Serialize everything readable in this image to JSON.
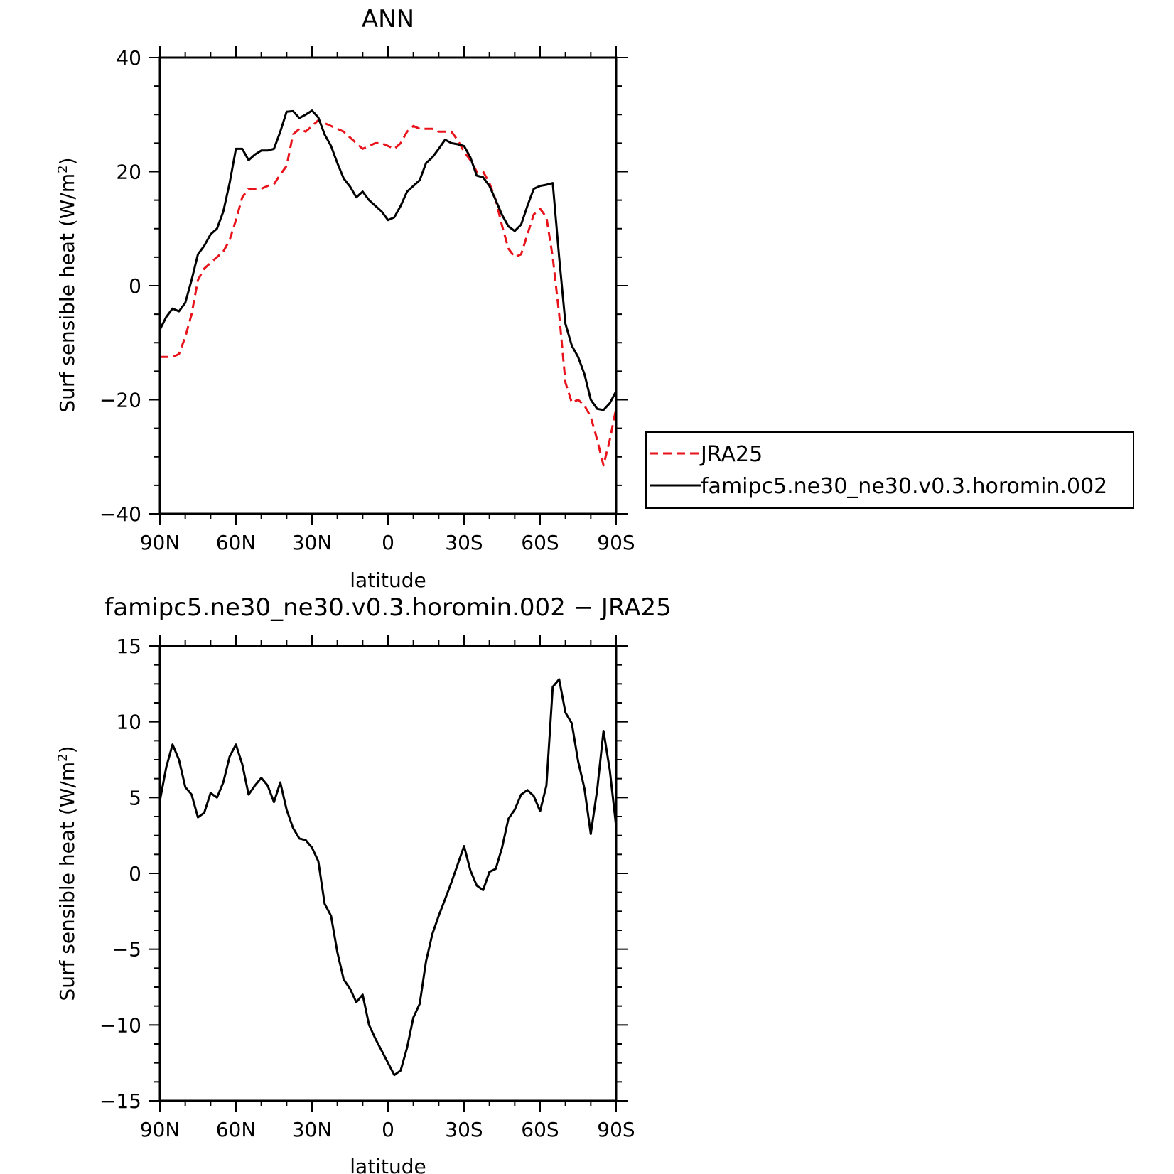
{
  "chart_data": [
    {
      "type": "line",
      "title": "ANN",
      "xlabel": "latitude",
      "ylabel": "Surf sensible heat (W/m",
      "ylabel_sup": "2",
      "ylabel_close": ")",
      "xlim": [
        90,
        -90
      ],
      "ylim": [
        -40,
        40
      ],
      "xticks": [
        90,
        60,
        30,
        0,
        -30,
        -60,
        -90
      ],
      "xtick_labels": [
        "90N",
        "60N",
        "30N",
        "0",
        "30S",
        "60S",
        "90S"
      ],
      "yticks": [
        -40,
        -20,
        0,
        20,
        40
      ],
      "ytick_labels": [
        "−40",
        "−20",
        "0",
        "20",
        "40"
      ],
      "grid": false,
      "legend_position": "right",
      "series": [
        {
          "name": "JRA25",
          "color": "#e8131b",
          "dash": "dashed",
          "x": [
            90,
            87.5,
            85,
            82.5,
            80,
            77.5,
            75,
            72.5,
            70,
            67.5,
            65,
            62.5,
            60,
            57.5,
            55,
            52.5,
            50,
            47.5,
            45,
            42.5,
            40,
            37.5,
            35,
            32.5,
            30,
            27.5,
            25,
            22.5,
            20,
            17.5,
            15,
            12.5,
            10,
            7.5,
            5,
            2.5,
            0,
            -2.5,
            -5,
            -7.5,
            -10,
            -12.5,
            -15,
            -17.5,
            -20,
            -22.5,
            -25,
            -27.5,
            -30,
            -32.5,
            -35,
            -37.5,
            -40,
            -42.5,
            -45,
            -47.5,
            -50,
            -52.5,
            -55,
            -57.5,
            -60,
            -62.5,
            -65,
            -67.5,
            -70,
            -72.5,
            -75,
            -77.5,
            -80,
            -82.5,
            -85,
            -87.5,
            -90
          ],
          "y": [
            -12.5,
            -12.5,
            -12.5,
            -12,
            -9,
            -5,
            1,
            3,
            4,
            5,
            6,
            8,
            11.5,
            15.5,
            17,
            17,
            17,
            17.5,
            17.8,
            19.5,
            21,
            26.5,
            27.5,
            27,
            28,
            29,
            28.5,
            28,
            27.5,
            27,
            26,
            25,
            24,
            24.5,
            25,
            25,
            24.5,
            24,
            25,
            27,
            28,
            27.5,
            27.5,
            27.5,
            27,
            27,
            27,
            25.5,
            23.5,
            22,
            20,
            20,
            18,
            15,
            10.5,
            6.5,
            5,
            5.5,
            9,
            12.5,
            13.5,
            12,
            5,
            -5,
            -17,
            -20.5,
            -20,
            -21,
            -23,
            -27,
            -31.5,
            -27,
            -21.5
          ]
        },
        {
          "name": "famipc5.ne30_ne30.v0.3.horomin.002",
          "color": "#000000",
          "dash": "solid",
          "x": [
            90,
            87.5,
            85,
            82.5,
            80,
            77.5,
            75,
            72.5,
            70,
            67.5,
            65,
            62.5,
            60,
            57.5,
            55,
            52.5,
            50,
            47.5,
            45,
            42.5,
            40,
            37.5,
            35,
            32.5,
            30,
            27.5,
            25,
            22.5,
            20,
            17.5,
            15,
            12.5,
            10,
            7.5,
            5,
            2.5,
            0,
            -2.5,
            -5,
            -7.5,
            -10,
            -12.5,
            -15,
            -17.5,
            -20,
            -22.5,
            -25,
            -27.5,
            -30,
            -32.5,
            -35,
            -37.5,
            -40,
            -42.5,
            -45,
            -47.5,
            -50,
            -52.5,
            -55,
            -57.5,
            -60,
            -62.5,
            -65,
            -67.5,
            -70,
            -72.5,
            -75,
            -77.5,
            -80,
            -82.5,
            -85,
            -87.5,
            -90
          ],
          "y": [
            -7.7,
            -5.5,
            -4,
            -4.5,
            -3,
            1,
            5.5,
            7,
            9,
            10,
            13,
            18,
            24,
            24,
            22,
            23,
            23.7,
            23.7,
            24,
            27,
            30.5,
            30.6,
            29.4,
            30,
            30.7,
            29.5,
            26.5,
            24.5,
            21.5,
            18.8,
            17.4,
            15.5,
            16.5,
            15,
            14,
            13,
            11.5,
            12,
            14,
            16.5,
            17.5,
            18.5,
            21.5,
            22.5,
            24,
            25.6,
            25,
            24.8,
            24.5,
            22.5,
            19.3,
            19,
            17.5,
            15,
            12.4,
            10.4,
            9.6,
            10.7,
            14,
            17,
            17.5,
            17.7,
            18,
            5,
            -6.7,
            -10.5,
            -12.5,
            -15.5,
            -20,
            -21.6,
            -21.8,
            -20.6,
            -18.5
          ]
        }
      ]
    },
    {
      "type": "line",
      "title": "famipc5.ne30_ne30.v0.3.horomin.002 − JRA25",
      "xlabel": "latitude",
      "ylabel": "Surf sensible heat (W/m",
      "ylabel_sup": "2",
      "ylabel_close": ")",
      "xlim": [
        90,
        -90
      ],
      "ylim": [
        -15,
        15
      ],
      "xticks": [
        90,
        60,
        30,
        0,
        -30,
        -60,
        -90
      ],
      "xtick_labels": [
        "90N",
        "60N",
        "30N",
        "0",
        "30S",
        "60S",
        "90S"
      ],
      "yticks": [
        -15,
        -10,
        -5,
        0,
        5,
        10,
        15
      ],
      "ytick_labels": [
        "−15",
        "−10",
        "−5",
        "0",
        "5",
        "10",
        "15"
      ],
      "grid": false,
      "series": [
        {
          "color": "#000000",
          "dash": "solid",
          "x": [
            90,
            87.5,
            85,
            82.5,
            80,
            77.5,
            75,
            72.5,
            70,
            67.5,
            65,
            62.5,
            60,
            57.5,
            55,
            52.5,
            50,
            47.5,
            45,
            42.5,
            40,
            37.5,
            35,
            32.5,
            30,
            27.5,
            25,
            22.5,
            20,
            17.5,
            15,
            12.5,
            10,
            7.5,
            5,
            2.5,
            0,
            -2.5,
            -5,
            -7.5,
            -10,
            -12.5,
            -15,
            -17.5,
            -20,
            -22.5,
            -25,
            -27.5,
            -30,
            -32.5,
            -35,
            -37.5,
            -40,
            -42.5,
            -45,
            -47.5,
            -50,
            -52.5,
            -55,
            -57.5,
            -60,
            -62.5,
            -65,
            -67.5,
            -70,
            -72.5,
            -75,
            -77.5,
            -80,
            -82.5,
            -85,
            -87.5,
            -90
          ],
          "y": [
            4.8,
            7,
            8.5,
            7.5,
            5.7,
            5.2,
            3.7,
            4,
            5.3,
            5,
            6,
            7.7,
            8.5,
            7.2,
            5.2,
            5.8,
            6.3,
            5.8,
            4.7,
            6,
            4.2,
            3,
            2.3,
            2.2,
            1.7,
            0.8,
            -2,
            -2.8,
            -5.2,
            -7,
            -7.6,
            -8.5,
            -8,
            -10,
            -10.9,
            -11.7,
            -12.5,
            -13.3,
            -13,
            -11.5,
            -9.5,
            -8.6,
            -5.8,
            -4,
            -2.8,
            -1.7,
            -0.6,
            0.6,
            1.8,
            0.2,
            -0.8,
            -1.1,
            0.1,
            0.3,
            1.7,
            3.6,
            4.2,
            5.2,
            5.5,
            5.1,
            4.1,
            5.8,
            12.3,
            12.8,
            10.6,
            9.9,
            7.4,
            5.6,
            2.6,
            5.5,
            9.4,
            6.8,
            3.1
          ]
        }
      ]
    }
  ]
}
